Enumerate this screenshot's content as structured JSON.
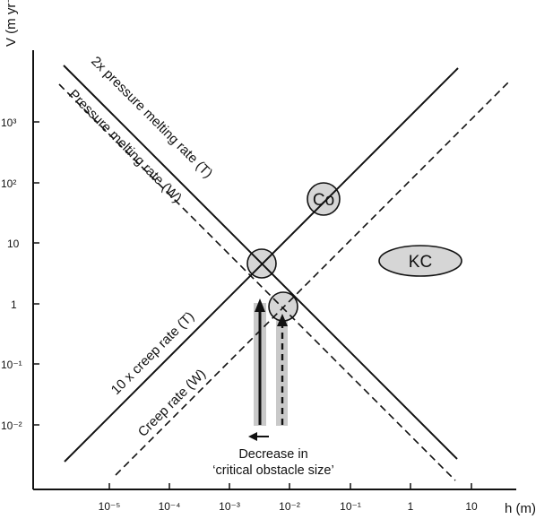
{
  "figure": {
    "y_axis_label": "V (m yr⁻¹)",
    "x_axis_label": "h (m)",
    "y_ticks": [
      "10³",
      "10²",
      "10",
      "1",
      "10⁻¹",
      "10⁻²"
    ],
    "x_ticks": [
      "10⁻⁵",
      "10⁻⁴",
      "10⁻³",
      "10⁻²",
      "10⁻¹",
      "1",
      "10"
    ],
    "lines": {
      "pressure_melting_T": "2x pressure melting rate (T)",
      "pressure_melting_W": "Pressure melting rate (W)",
      "creep_T": "10 x creep rate (T)",
      "creep_W": "Creep rate (W)"
    },
    "labels": {
      "co": "Co",
      "kc": "KC"
    },
    "annotation": {
      "line1": "Decrease in",
      "line2": "‘critical obstacle size’"
    }
  }
}
